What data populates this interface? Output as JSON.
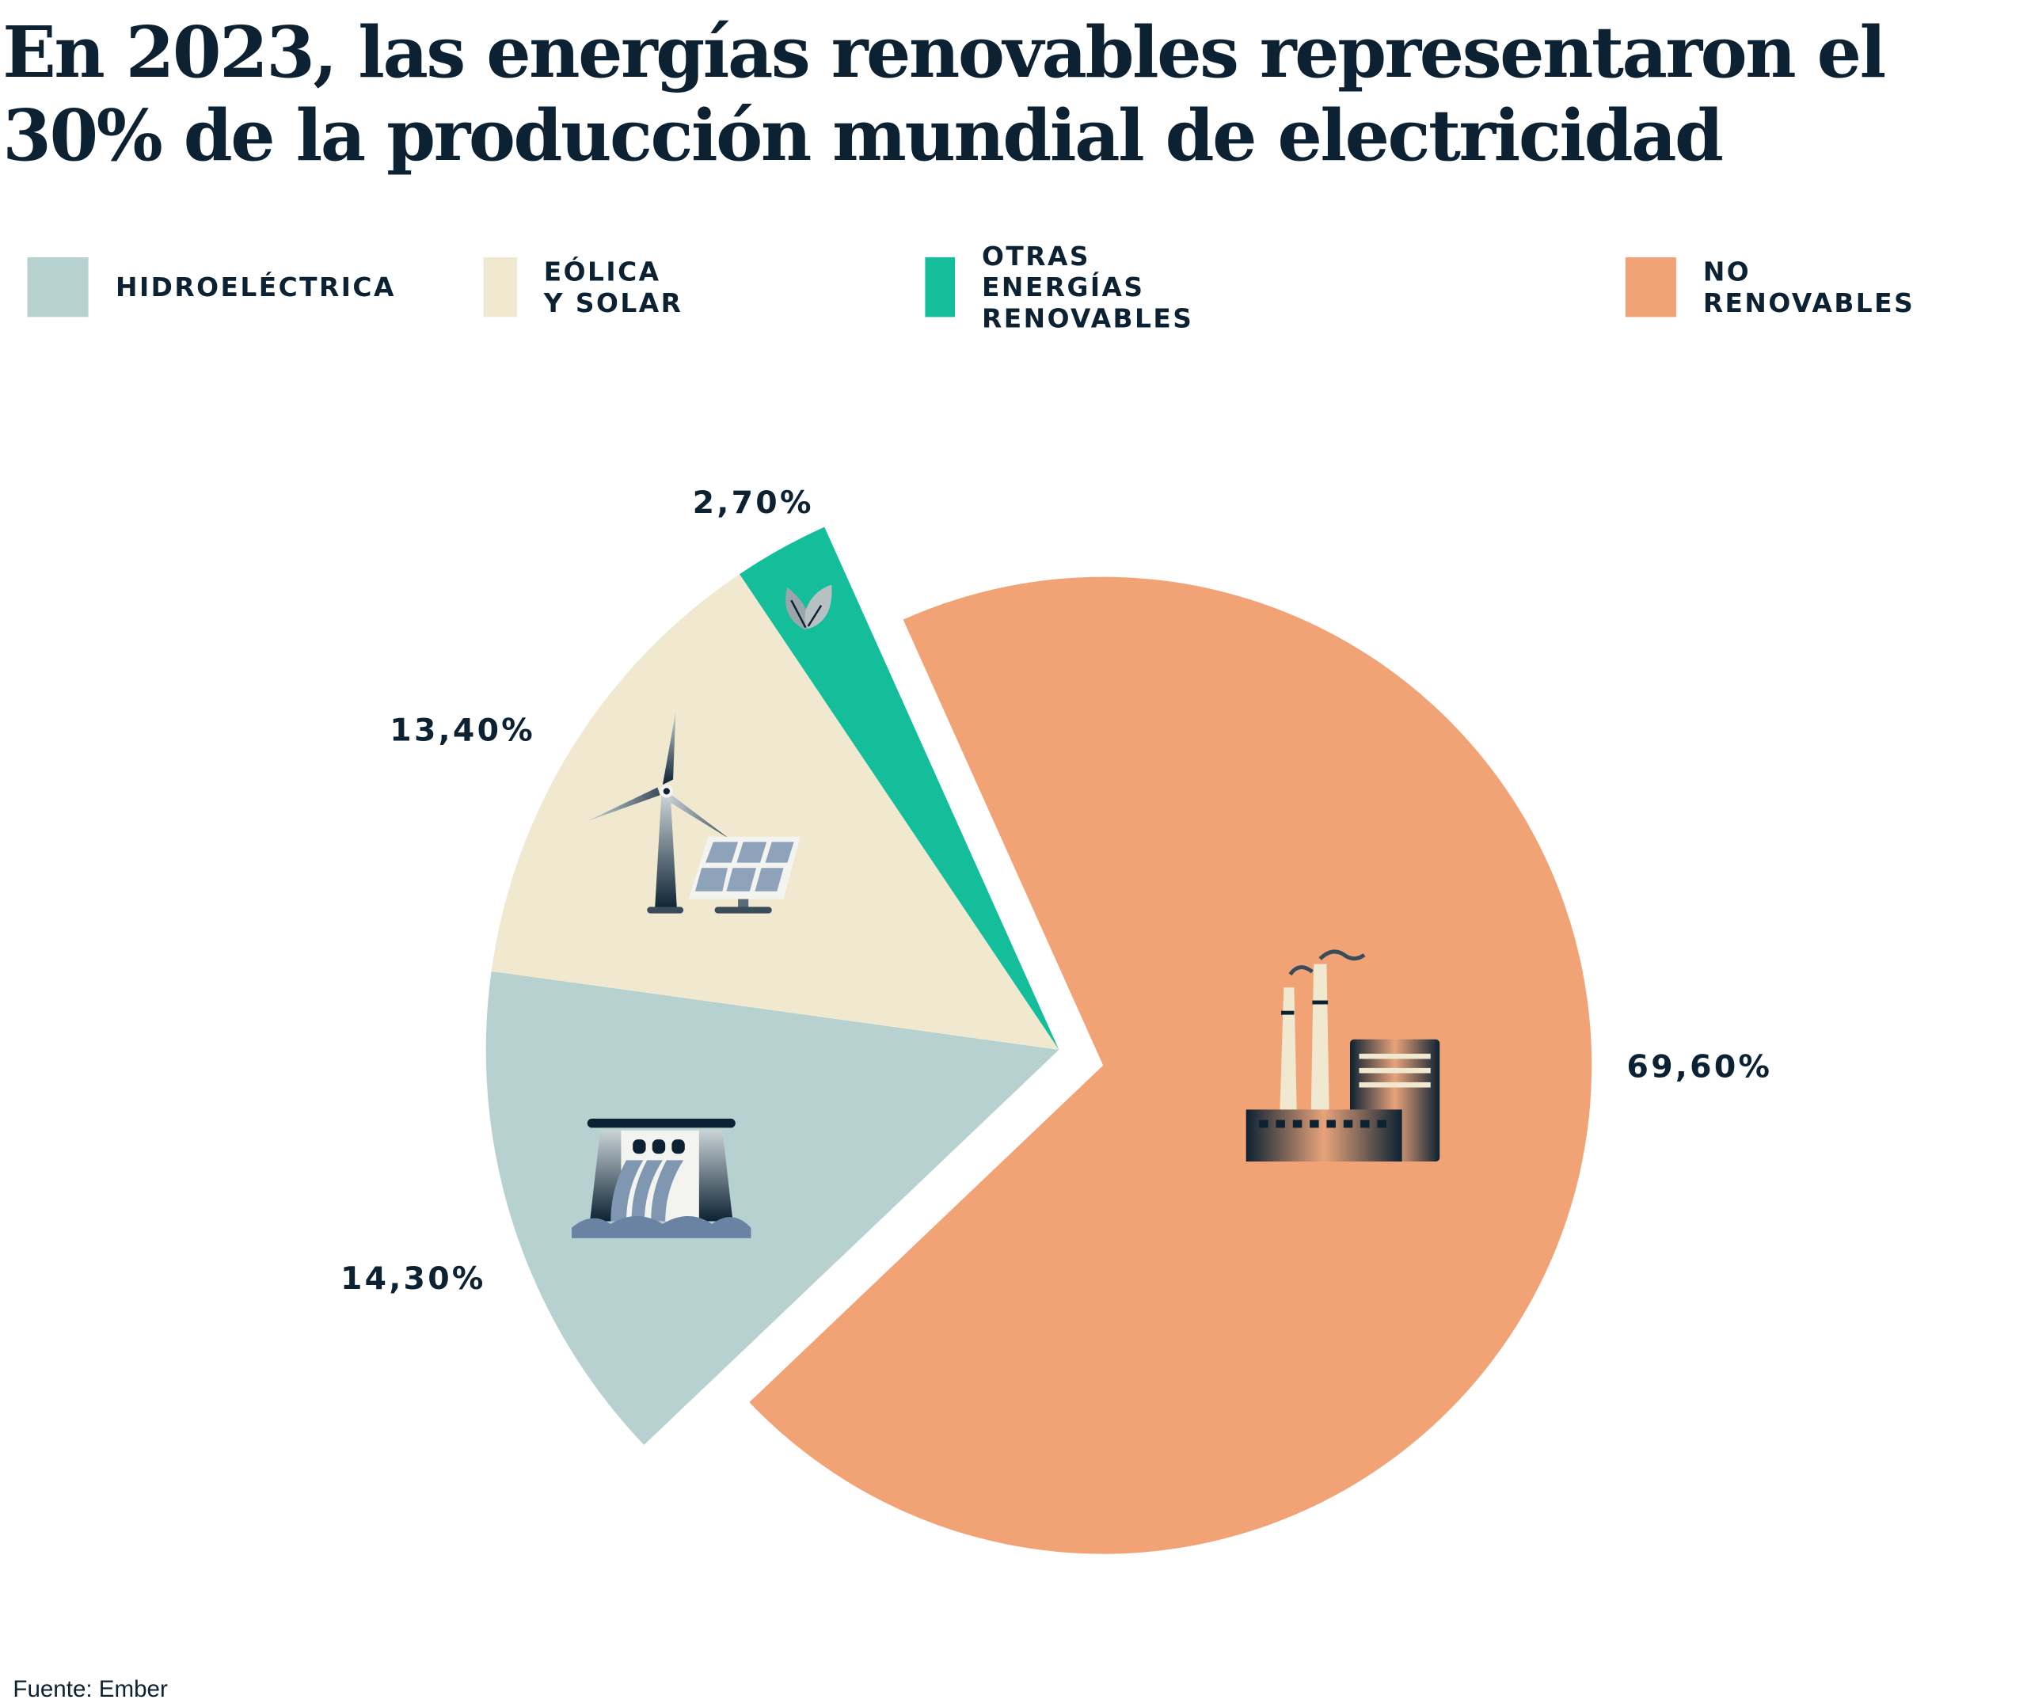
{
  "chart_data": {
    "type": "pie",
    "title": "En 2023, las energías renovables representaron el 30% de la producción mundial de electricidad",
    "legend_position": "top",
    "slices": [
      {
        "name": "HIDROELÉCTRICA",
        "value": 14.3,
        "label": "14,30%",
        "color": "#b7d1d0",
        "icon": "hydro-dam-icon"
      },
      {
        "name": "EÓLICA Y SOLAR",
        "value": 13.4,
        "label": "13,40%",
        "color": "#f0e9cf",
        "icon": "wind-solar-icon"
      },
      {
        "name": "OTRAS ENERGÍAS RENOVABLES",
        "value": 2.7,
        "label": "2,70%",
        "color": "#15be9b",
        "icon": "leaf-icon"
      },
      {
        "name": "NO RENOVABLES",
        "value": 69.6,
        "label": "69,60%",
        "color": "#f2a376",
        "icon": "factory-icon"
      }
    ]
  },
  "source": "Fuente: Ember"
}
